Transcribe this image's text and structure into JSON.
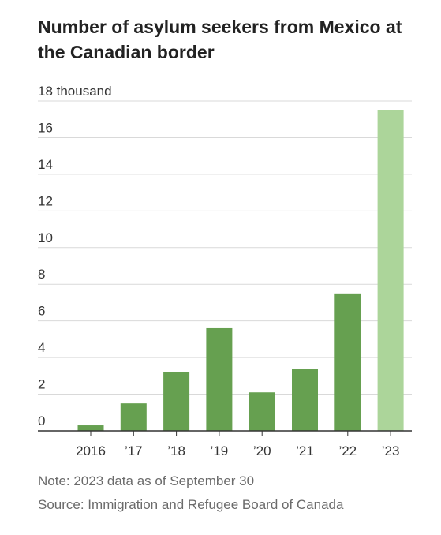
{
  "chart_data": {
    "type": "bar",
    "title": "Number of asylum seekers from Mexico at the Canadian border",
    "categories": [
      "2016",
      "’17",
      "’18",
      "’19",
      "’20",
      "’21",
      "’22",
      "’23"
    ],
    "values": [
      0.3,
      1.5,
      3.2,
      5.6,
      2.1,
      3.4,
      7.5,
      17.5
    ],
    "highlighted_category": "’23",
    "y_unit_label": "18 thousand",
    "yticks": [
      0,
      2,
      4,
      6,
      8,
      10,
      12,
      14,
      16,
      18
    ],
    "ylim": [
      0,
      18
    ],
    "xlabel": "",
    "ylabel": "",
    "grid": true,
    "legend": "none",
    "colors": {
      "bar": "#66a050",
      "bar_highlight": "#acd59a",
      "grid": "#d9d9d9",
      "axis": "#333333"
    }
  },
  "note": "Note: 2023 data as of September 30",
  "source": "Source: Immigration and Refugee Board of Canada"
}
